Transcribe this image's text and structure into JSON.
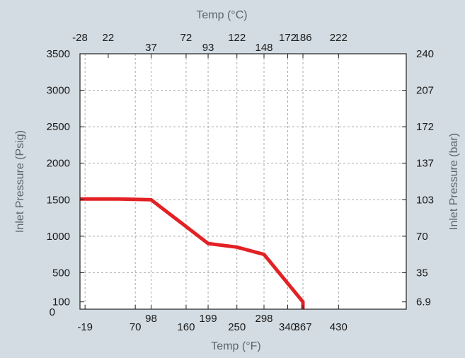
{
  "chart_data": {
    "type": "line",
    "title": "",
    "xlabel": "Temp (°F)",
    "x2label": "Temp (°C)",
    "ylabel": "Inlet Pressure  (Psig)",
    "y2label": "Inlet Pressure  (bar)",
    "xlim": [
      -28,
      550
    ],
    "ylim": [
      0,
      3500
    ],
    "grid": true,
    "colors": {
      "line": "#e32124",
      "plot_bg": "#ffffff",
      "page_bg": "#d3dce3",
      "grid": "#aaaaaa"
    },
    "x_bottom_ticks": [
      {
        "label": "-19",
        "v": -19
      },
      {
        "label": "70",
        "v": 70
      },
      {
        "label": "98",
        "v": 98
      },
      {
        "label": "160",
        "v": 160
      },
      {
        "label": "199",
        "v": 199
      },
      {
        "label": "250",
        "v": 250
      },
      {
        "label": "298",
        "v": 298
      },
      {
        "label": "340",
        "v": 340
      },
      {
        "label": "367",
        "v": 367
      },
      {
        "label": "430",
        "v": 430
      }
    ],
    "x_top_ticks": [
      {
        "label": "-28",
        "v": -28
      },
      {
        "label": "22",
        "v": 22
      },
      {
        "label": "37",
        "v": 98
      },
      {
        "label": "72",
        "v": 160
      },
      {
        "label": "93",
        "v": 199
      },
      {
        "label": "122",
        "v": 250
      },
      {
        "label": "148",
        "v": 298
      },
      {
        "label": "172",
        "v": 340
      },
      {
        "label": "186",
        "v": 367
      },
      {
        "label": "222",
        "v": 430
      }
    ],
    "y_left_ticks": [
      {
        "label": "0",
        "v": 0
      },
      {
        "label": "100",
        "v": 100
      },
      {
        "label": "500",
        "v": 500
      },
      {
        "label": "1000",
        "v": 1000
      },
      {
        "label": "1500",
        "v": 1500
      },
      {
        "label": "2000",
        "v": 2000
      },
      {
        "label": "2500",
        "v": 2500
      },
      {
        "label": "3000",
        "v": 3000
      },
      {
        "label": "3500",
        "v": 3500
      }
    ],
    "y_right_ticks": [
      {
        "label": "6.9",
        "v": 100
      },
      {
        "label": "35",
        "v": 500
      },
      {
        "label": "70",
        "v": 1000
      },
      {
        "label": "103",
        "v": 1500
      },
      {
        "label": "137",
        "v": 2000
      },
      {
        "label": "172",
        "v": 2500
      },
      {
        "label": "207",
        "v": 3000
      },
      {
        "label": "240",
        "v": 3500
      }
    ],
    "grid_x": [
      -19,
      70,
      98,
      160,
      199,
      250,
      298,
      340,
      367,
      430
    ],
    "grid_y": [
      500,
      1000,
      1500,
      2000,
      2500,
      3000
    ],
    "series": [
      {
        "x": [
          -28,
          40,
          98,
          199,
          250,
          298,
          367,
          367
        ],
        "y": [
          1510,
          1510,
          1500,
          900,
          850,
          750,
          100,
          0
        ]
      }
    ]
  }
}
